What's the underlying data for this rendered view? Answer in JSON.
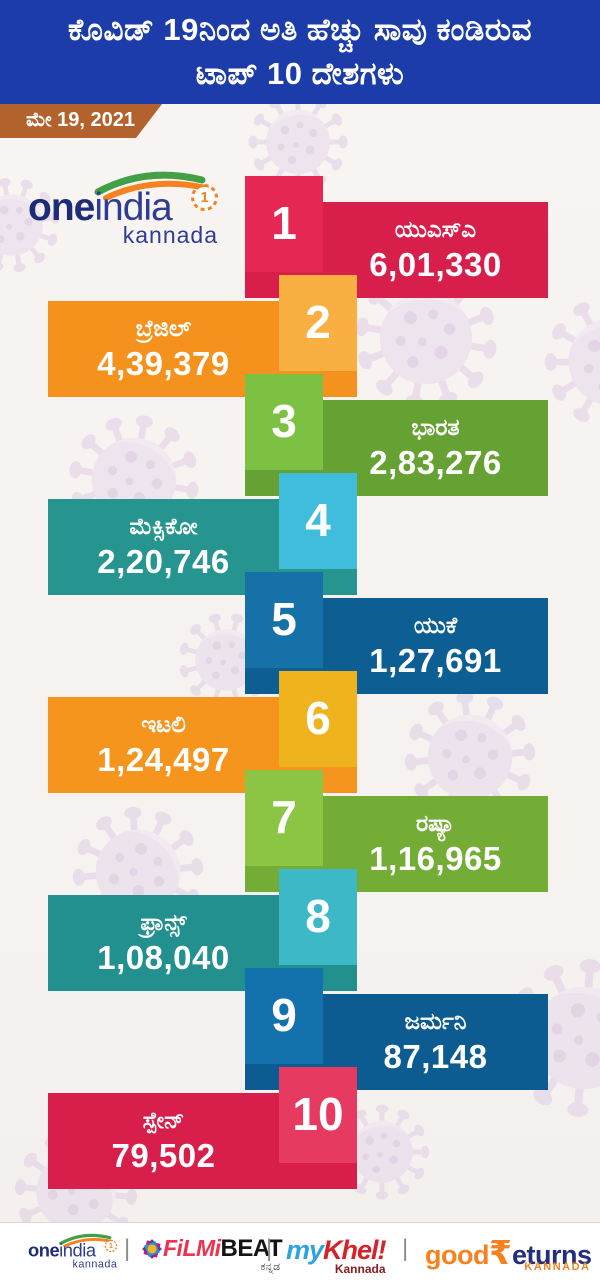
{
  "header": {
    "title_line1": "ಕೊವಿಡ್ 19ನಿಂದ ಅತಿ ಹೆಚ್ಚು ಸಾವು ಕಂಡಿರುವ",
    "title_line2": "ಟಾಪ್ 10 ದೇಶಗಳು",
    "date": "ಮೇ 19, 2021",
    "bg_color": "#1c3da9",
    "badge_color": "#b4622d"
  },
  "logo": {
    "one": "one",
    "india": "india",
    "badge": "1",
    "kannada": "kannada"
  },
  "chart_data": {
    "type": "bar",
    "title": "ಕೊವಿಡ್ 19ನಿಂದ ಅತಿ ಹೆಚ್ಚು ಸಾವು ಕಂಡಿರುವ ಟಾಪ್ 10 ದೇಶಗಳು",
    "subtitle": "ಮೇ 19, 2021",
    "orientation": "ranked-list",
    "categories": [
      "ಯುಎಸ್ಎ",
      "ಬ್ರೆಜಿಲ್",
      "ಭಾರತ",
      "ಮೆಕ್ಸಿಕೋ",
      "ಯುಕೆ",
      "ಇಟಲಿ",
      "ರಷ್ಯಾ",
      "ಫ್ರಾನ್ಸ್",
      "ಜರ್ಮನಿ",
      "ಸ್ಪೇನ್"
    ],
    "values": [
      601330,
      439379,
      283276,
      220746,
      127691,
      124497,
      116965,
      108040,
      87148,
      79502
    ],
    "value_labels": [
      "6,01,330",
      "4,39,379",
      "2,83,276",
      "2,20,746",
      "1,27,691",
      "1,24,497",
      "1,16,965",
      "1,08,040",
      "87,148",
      "79,502"
    ]
  },
  "ranks": [
    {
      "rank": "1",
      "country": "ಯುಎಸ್ಎ",
      "value": 601330,
      "value_label": "6,01,330",
      "bar_color": "#d81f4b",
      "tab_color": "#e52753",
      "side": "right"
    },
    {
      "rank": "2",
      "country": "ಬ್ರೆಜಿಲ್",
      "value": 439379,
      "value_label": "4,39,379",
      "bar_color": "#f5921e",
      "tab_color": "#faaf42",
      "side": "left"
    },
    {
      "rank": "3",
      "country": "ಭಾರತ",
      "value": 283276,
      "value_label": "2,83,276",
      "bar_color": "#65a233",
      "tab_color": "#7cc142",
      "side": "right"
    },
    {
      "rank": "4",
      "country": "ಮೆಕ್ಸಿಕೋ",
      "value": 220746,
      "value_label": "2,20,746",
      "bar_color": "#26958f",
      "tab_color": "#40bcdc",
      "side": "left"
    },
    {
      "rank": "5",
      "country": "ಯುಕೆ",
      "value": 127691,
      "value_label": "1,27,691",
      "bar_color": "#0d5e93",
      "tab_color": "#1571a7",
      "side": "right"
    },
    {
      "rank": "6",
      "country": "ಇಟಲಿ",
      "value": 124497,
      "value_label": "1,24,497",
      "bar_color": "#f5951e",
      "tab_color": "#efb31d",
      "side": "left"
    },
    {
      "rank": "7",
      "country": "ರಷ್ಯಾ",
      "value": 116965,
      "value_label": "1,16,965",
      "bar_color": "#73ad35",
      "tab_color": "#8cc443",
      "side": "right"
    },
    {
      "rank": "8",
      "country": "ಫ್ರಾನ್ಸ್",
      "value": 108040,
      "value_label": "1,08,040",
      "bar_color": "#22908f",
      "tab_color": "#3db8c6",
      "side": "left"
    },
    {
      "rank": "9",
      "country": "ಜರ್ಮನಿ",
      "value": 87148,
      "value_label": "87,148",
      "bar_color": "#0d5c91",
      "tab_color": "#1371ab",
      "side": "right"
    },
    {
      "rank": "10",
      "country": "ಸ್ಪೇನ್",
      "value": 79502,
      "value_label": "79,502",
      "bar_color": "#d81f4b",
      "tab_color": "#e63a60",
      "side": "left"
    }
  ],
  "footer": {
    "separator": "|",
    "oneindia": {
      "one": "one",
      "india": "india",
      "badge": "1",
      "kannada": "kannada"
    },
    "filmibeat": {
      "filmi": "FiLMi",
      "beat": "BEAT",
      "sub": "ಕನ್ನಡ"
    },
    "mykhel": {
      "my": "my",
      "khel": "Khel!",
      "sub": "Kannada"
    },
    "goodreturns": {
      "good": "good",
      "rupee": "₹",
      "eturns": "eturns",
      "sub": "KANNADA"
    }
  }
}
